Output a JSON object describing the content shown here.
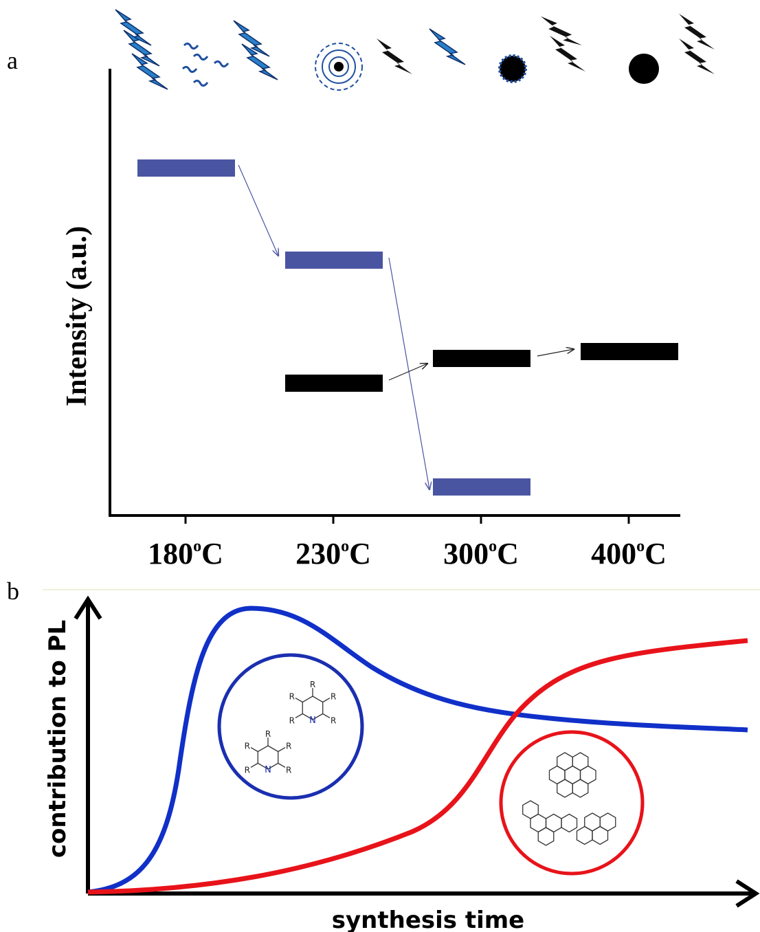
{
  "panel_a": {
    "label": "a",
    "y_axis_label": "Intensity (a.u.)",
    "temperatures": [
      {
        "base": "180",
        "sup": "o",
        "unit": "C"
      },
      {
        "base": "230",
        "sup": "o",
        "unit": "C"
      },
      {
        "base": "300",
        "sup": "o",
        "unit": "C"
      },
      {
        "base": "400",
        "sup": "o",
        "unit": "C"
      }
    ]
  },
  "panel_b": {
    "label": "b",
    "y_axis_label": "contribution to PL",
    "x_axis_label": "synthesis time",
    "molecule_labels": {
      "substituent": "R",
      "heteroatom": "N"
    }
  }
}
